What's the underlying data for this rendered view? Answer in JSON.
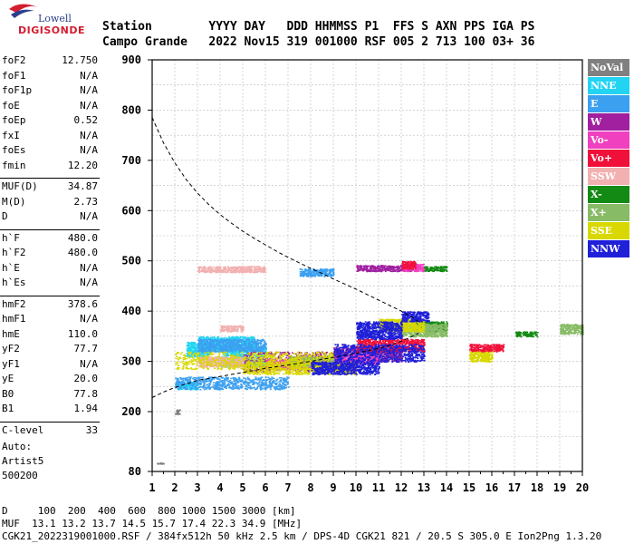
{
  "logo": {
    "line1": "Lowell",
    "line2": "DIGISONDE"
  },
  "header": {
    "row1": "Station        YYYY DAY   DDD HHMMSS P1  FFS S AXN PPS IGA PS",
    "row2": "Campo Grande   2022 Nov15 319 001000 RSF 005 2 713 100 03+ 36"
  },
  "params": [
    {
      "label": "foF2",
      "value": "12.750"
    },
    {
      "label": "foF1",
      "value": "N/A"
    },
    {
      "label": "foF1p",
      "value": "N/A"
    },
    {
      "label": "foE",
      "value": "N/A"
    },
    {
      "label": "foEp",
      "value": "0.52"
    },
    {
      "label": "fxI",
      "value": "N/A"
    },
    {
      "label": "foEs",
      "value": "N/A"
    },
    {
      "label": "fmin",
      "value": "12.20"
    },
    {
      "label": "MUF(D)",
      "value": "34.87"
    },
    {
      "label": "M(D)",
      "value": "2.73"
    },
    {
      "label": "D",
      "value": "N/A"
    },
    {
      "label": "h`F",
      "value": "480.0"
    },
    {
      "label": "h`F2",
      "value": "480.0"
    },
    {
      "label": "h`E",
      "value": "N/A"
    },
    {
      "label": "h`Es",
      "value": "N/A"
    },
    {
      "label": "hmF2",
      "value": "378.6"
    },
    {
      "label": "hmF1",
      "value": "N/A"
    },
    {
      "label": "hmE",
      "value": "110.0"
    },
    {
      "label": "yF2",
      "value": "77.7"
    },
    {
      "label": "yF1",
      "value": "N/A"
    },
    {
      "label": "yE",
      "value": "20.0"
    },
    {
      "label": "B0",
      "value": "77.8"
    },
    {
      "label": "B1",
      "value": "1.94"
    },
    {
      "label": "C-level",
      "value": "33"
    }
  ],
  "auto": {
    "line1": "Auto:",
    "line2": "Artist5",
    "line3": "500200"
  },
  "legend": [
    {
      "label": "NoVal",
      "color": "#808080"
    },
    {
      "label": "NNE",
      "color": "#22d4f2"
    },
    {
      "label": "E",
      "color": "#3ca0f0"
    },
    {
      "label": "W",
      "color": "#a020a0"
    },
    {
      "label": "Vo-",
      "color": "#f040c0"
    },
    {
      "label": "Vo+",
      "color": "#f0103a"
    },
    {
      "label": "SSW",
      "color": "#f2b0b0"
    },
    {
      "label": "X-",
      "color": "#138a13"
    },
    {
      "label": "X+",
      "color": "#88bb66"
    },
    {
      "label": "SSE",
      "color": "#d8d800"
    },
    {
      "label": "NNW",
      "color": "#2020d8"
    }
  ],
  "footer": {
    "line1": "D     100  200  400  600  800 1000 1500 3000 [km]",
    "line2": "MUF  13.1 13.2 13.7 14.5 15.7 17.4 22.3 34.9 [MHz]",
    "line3": "CGK21_2022319001000.RSF / 384fx512h 50 kHz 2.5 km / DPS-4D CGK21 821 / 20.5 S 305.0 E Ion2Png 1.3.20"
  },
  "chart_data": {
    "type": "scatter",
    "title": "",
    "xlabel": "",
    "ylabel": "",
    "xlim": [
      1,
      20
    ],
    "ylim": [
      80,
      900
    ],
    "x_ticks": [
      1,
      2,
      3,
      4,
      5,
      6,
      7,
      8,
      9,
      10,
      11,
      12,
      13,
      14,
      15,
      16,
      17,
      18,
      19,
      20
    ],
    "y_ticks": [
      80,
      200,
      300,
      400,
      500,
      600,
      700,
      800,
      900
    ],
    "grid": true,
    "legend_position": "right",
    "profile_curve": {
      "name": "electron density profile",
      "points": [
        [
          1,
          785
        ],
        [
          1.5,
          735
        ],
        [
          2,
          695
        ],
        [
          2.5,
          662
        ],
        [
          3,
          635
        ],
        [
          3.5,
          612
        ],
        [
          4,
          592
        ],
        [
          4.5,
          575
        ],
        [
          5,
          559
        ],
        [
          5.5,
          545
        ],
        [
          6,
          532
        ],
        [
          6.5,
          519
        ],
        [
          7,
          507
        ],
        [
          7.5,
          496
        ],
        [
          8,
          485
        ],
        [
          8.5,
          475
        ],
        [
          9,
          464
        ],
        [
          9.5,
          454
        ],
        [
          10,
          444
        ],
        [
          10.5,
          433
        ],
        [
          11,
          422
        ],
        [
          11.5,
          411
        ],
        [
          12,
          400
        ],
        [
          12.3,
          392
        ],
        [
          12.6,
          385
        ],
        [
          12.75,
          379
        ]
      ]
    },
    "trace_curve": {
      "name": "virtual height",
      "points": [
        [
          1,
          228
        ],
        [
          1.5,
          239
        ],
        [
          2,
          248
        ],
        [
          2.5,
          255
        ],
        [
          3,
          262
        ],
        [
          4,
          270
        ],
        [
          5,
          278
        ],
        [
          6,
          286
        ],
        [
          7,
          293
        ],
        [
          8,
          300
        ],
        [
          9,
          308
        ],
        [
          10,
          316
        ],
        [
          11,
          326
        ],
        [
          11.5,
          332
        ],
        [
          12,
          340
        ],
        [
          12.5,
          350
        ],
        [
          12.75,
          356
        ]
      ]
    },
    "series": [
      {
        "name": "NNE",
        "color": "#22d4f2",
        "clusters": [
          [
            2.5,
            3.5,
            310,
            340
          ],
          [
            3,
            5.5,
            320,
            350
          ],
          [
            4,
            6,
            290,
            330
          ],
          [
            2,
            3,
            245,
            260
          ]
        ]
      },
      {
        "name": "E",
        "color": "#3ca0f0",
        "clusters": [
          [
            2,
            7,
            245,
            270
          ],
          [
            7.5,
            9,
            470,
            485
          ],
          [
            3,
            6,
            320,
            345
          ]
        ]
      },
      {
        "name": "W",
        "color": "#a020a0",
        "clusters": [
          [
            5,
            10,
            280,
            320
          ],
          [
            9,
            12,
            300,
            330
          ],
          [
            10,
            12.5,
            480,
            492
          ],
          [
            7,
            9,
            290,
            310
          ]
        ]
      },
      {
        "name": "Vo-",
        "color": "#f040c0",
        "clusters": [
          [
            6,
            9,
            285,
            305
          ],
          [
            9,
            11,
            295,
            315
          ],
          [
            12,
            13,
            480,
            495
          ]
        ]
      },
      {
        "name": "Vo+",
        "color": "#f0103a",
        "clusters": [
          [
            12,
            12.6,
            485,
            500
          ],
          [
            10,
            13,
            320,
            345
          ],
          [
            15,
            16.5,
            320,
            335
          ]
        ]
      },
      {
        "name": "SSW",
        "color": "#f2b0b0",
        "clusters": [
          [
            3,
            6,
            478,
            490
          ],
          [
            4,
            5,
            360,
            372
          ],
          [
            3,
            5,
            290,
            310
          ]
        ]
      },
      {
        "name": "X-",
        "color": "#138a13",
        "clusters": [
          [
            12.5,
            14,
            360,
            380
          ],
          [
            13,
            14,
            480,
            490
          ],
          [
            17,
            18,
            350,
            360
          ]
        ]
      },
      {
        "name": "X+",
        "color": "#88bb66",
        "clusters": [
          [
            7,
            9,
            290,
            310
          ],
          [
            12,
            14,
            350,
            375
          ],
          [
            19,
            20,
            355,
            375
          ]
        ]
      },
      {
        "name": "SSE",
        "color": "#d8d800",
        "clusters": [
          [
            2,
            9,
            285,
            320
          ],
          [
            5,
            10,
            275,
            300
          ],
          [
            11,
            13,
            360,
            385
          ],
          [
            15,
            16,
            300,
            320
          ]
        ]
      },
      {
        "name": "NNW",
        "color": "#2020d8",
        "clusters": [
          [
            9,
            13,
            300,
            335
          ],
          [
            10,
            12,
            345,
            380
          ],
          [
            12,
            13.2,
            380,
            400
          ],
          [
            8,
            11,
            275,
            300
          ]
        ]
      },
      {
        "name": "NoVal",
        "color": "#808080",
        "clusters": [
          [
            2,
            2.2,
            195,
            205
          ],
          [
            1.2,
            1.5,
            96,
            98
          ]
        ]
      }
    ]
  }
}
